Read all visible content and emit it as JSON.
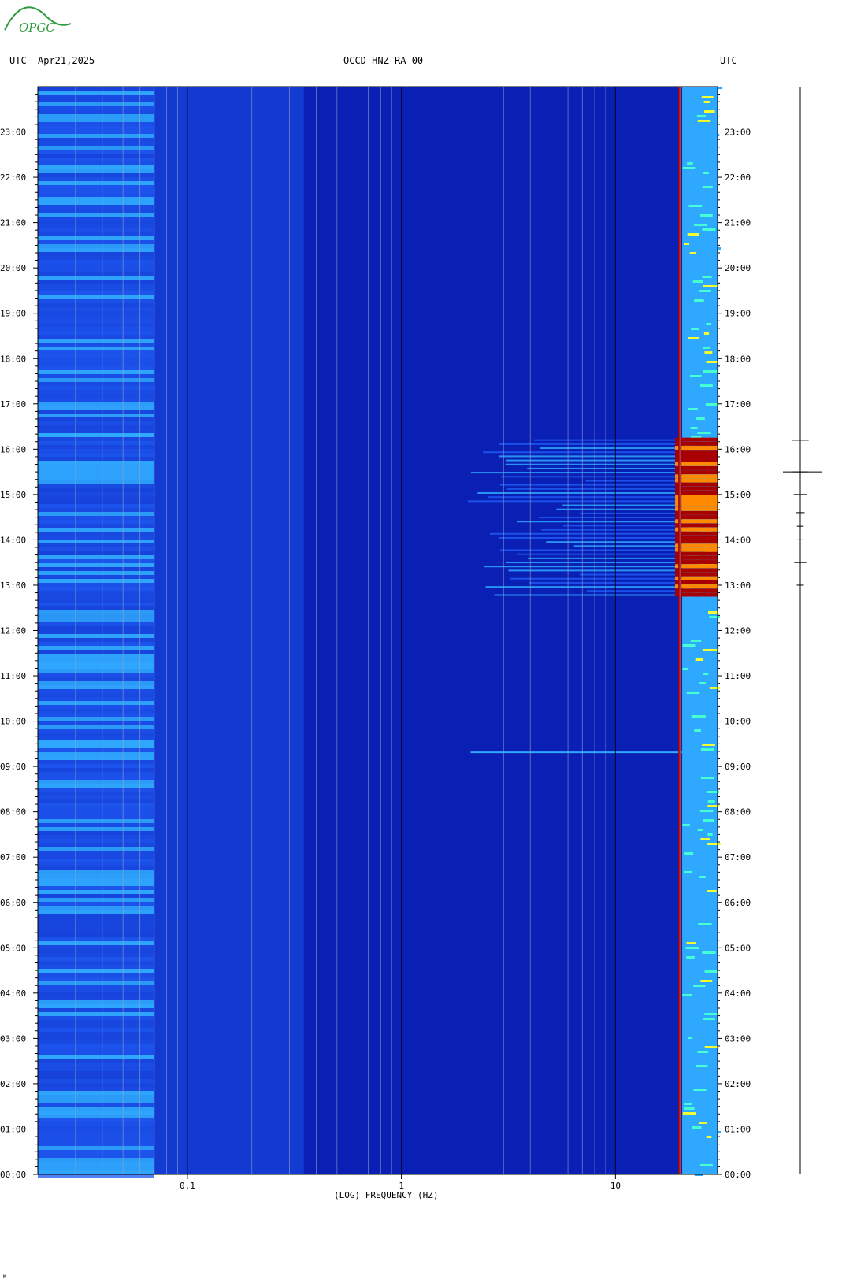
{
  "header": {
    "left_label": "UTC",
    "date": "Apr21,2025",
    "station": "OCCD HNZ RA 00",
    "right_label": "UTC"
  },
  "logo": {
    "text": "OPGC",
    "color": "#2f9a3f"
  },
  "chart_data": {
    "type": "heatmap",
    "title": "OCCD HNZ RA 00",
    "xlabel": "(LOG) FREQUENCY (HZ)",
    "xscale": "log",
    "xlim_hz": [
      0.02,
      30
    ],
    "x_tick_labels": [
      "0.1",
      "1",
      "10"
    ],
    "x_tick_values": [
      0.1,
      1,
      10
    ],
    "ylim_hours": [
      0,
      24
    ],
    "y_tick_labels": [
      "00:00",
      "01:00",
      "02:00",
      "03:00",
      "04:00",
      "05:00",
      "06:00",
      "07:00",
      "08:00",
      "09:00",
      "10:00",
      "11:00",
      "12:00",
      "13:00",
      "14:00",
      "15:00",
      "16:00",
      "17:00",
      "18:00",
      "19:00",
      "20:00",
      "21:00",
      "22:00",
      "23:00"
    ],
    "colormap": [
      "#0a1fb4",
      "#1f5cf5",
      "#2fa8ff",
      "#45ffd0",
      "#f2ff30",
      "#ff8a00",
      "#a80000"
    ],
    "background_color": "#0a1fb4",
    "features": [
      {
        "label": "persistent line",
        "freq_hz": 20.0,
        "hours": [
          0,
          24
        ],
        "level": "high"
      },
      {
        "label": "high-frequency band",
        "freq_range_hz": [
          20.5,
          30
        ],
        "hours": [
          0,
          24
        ],
        "level": "medium"
      },
      {
        "label": "low-frequency band",
        "freq_range_hz": [
          0.02,
          0.07
        ],
        "hours": [
          0,
          24
        ],
        "level": "low-medium"
      },
      {
        "label": "daytime activity",
        "freq_range_hz": [
          2,
          30
        ],
        "hours": [
          12.8,
          16.3
        ],
        "level": "high"
      },
      {
        "label": "event",
        "freq_range_hz": [
          1.5,
          30
        ],
        "hours": [
          9.27,
          9.33
        ],
        "level": "medium"
      }
    ]
  },
  "seismogram": {
    "hours": [
      0,
      24
    ],
    "bursts_hours": [
      13.0,
      13.5,
      14.0,
      14.3,
      14.6,
      15.0,
      15.5,
      16.2
    ],
    "peak_hour": 15.5,
    "color": "#000000"
  },
  "footer": {
    "mark": "M"
  }
}
